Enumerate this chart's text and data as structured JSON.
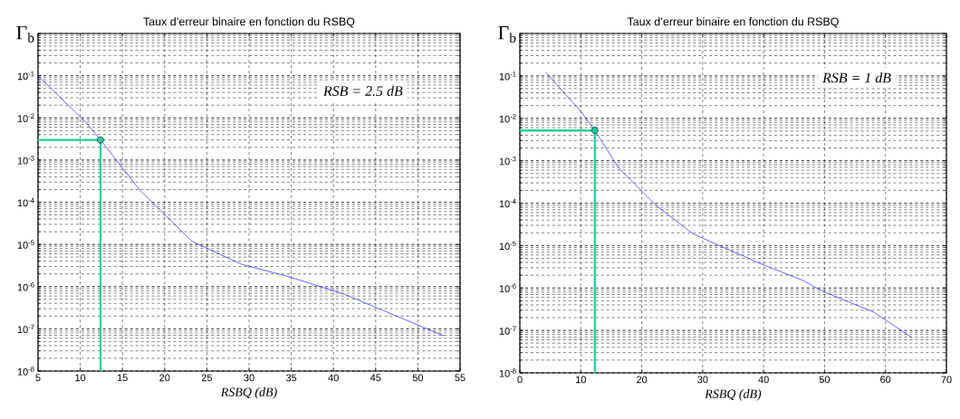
{
  "chart_data": [
    {
      "type": "line",
      "title": "Taux d’erreur binaire en fonction du RSBQ",
      "xlabel": "RSBQ (dB)",
      "ylabel": "Γ$_{b}$",
      "annotations": [
        "RSB = 2.5 dB"
      ],
      "log": "y",
      "grid": true,
      "xlim": [
        5,
        55
      ],
      "xticks": [
        5,
        10,
        15,
        20,
        25,
        30,
        35,
        40,
        45,
        50,
        55
      ],
      "ylim": [
        1e-08,
        1
      ],
      "yticks": [
        {
          "value": 1e-08,
          "label": "10$^{-8}$"
        },
        {
          "value": 1e-07,
          "label": "10$^{-7}$"
        },
        {
          "value": 1e-06,
          "label": "10$^{-6}$"
        },
        {
          "value": 1e-05,
          "label": "10$^{-5}$"
        },
        {
          "value": 0.0001,
          "label": "10$^{-4}$"
        },
        {
          "value": 0.001,
          "label": "10$^{-3}$"
        },
        {
          "value": 0.01,
          "label": "10$^{-2}$"
        },
        {
          "value": 0.1,
          "label": "10$^{-1}$"
        },
        {
          "value": 1,
          "label": null
        }
      ],
      "series": [
        {
          "color": "#0000ff",
          "x": [
            5,
            10.7,
            12.4,
            17.1,
            23.2,
            29.1,
            34.8,
            41.3,
            53.1
          ],
          "values": [
            0.1,
            0.0077,
            0.003,
            0.00019,
            1.2e-05,
            3.4e-06,
            1.7e-06,
            6.6e-07,
            6.8e-08
          ]
        },
        {
          "type": "line",
          "color": "#1ccf9c",
          "x": [
            5,
            12.4,
            12.4
          ],
          "values": [
            0.003,
            0.003,
            1e-08
          ]
        },
        {
          "type": "scatter",
          "color": "#1ccf9c",
          "marker": "circle",
          "x": [
            12.4
          ],
          "values": [
            0.003
          ]
        }
      ]
    },
    {
      "type": "line",
      "title": "Taux d’erreur binaire en fonction du RSBQ",
      "xlabel": "RSBQ (dB)",
      "ylabel": "Γ$_{b}$",
      "annotations": [
        "RSB = 1 dB"
      ],
      "log": "y",
      "grid": true,
      "xlim": [
        0,
        70
      ],
      "xticks": [
        0,
        10,
        20,
        30,
        40,
        50,
        60,
        70
      ],
      "ylim": [
        1e-08,
        1
      ],
      "yticks": [
        {
          "value": 1e-08,
          "label": "10$^{-8}$"
        },
        {
          "value": 1e-07,
          "label": "10$^{-7}$"
        },
        {
          "value": 1e-06,
          "label": "10$^{-6}$"
        },
        {
          "value": 1e-05,
          "label": "10$^{-5}$"
        },
        {
          "value": 0.0001,
          "label": "10$^{-4}$"
        },
        {
          "value": 0.001,
          "label": "10$^{-3}$"
        },
        {
          "value": 0.01,
          "label": "10$^{-2}$"
        },
        {
          "value": 0.1,
          "label": "10$^{-1}$"
        },
        {
          "value": 1,
          "label": null
        }
      ],
      "series": [
        {
          "color": "#0000ff",
          "x": [
            4.3,
            10.1,
            12.3,
            16.2,
            20.2,
            22.4,
            28.4,
            33.1,
            40,
            46.5,
            49.9,
            58.1,
            64.3
          ],
          "values": [
            0.12,
            0.014,
            0.0052,
            0.00068,
            0.00018,
            8.7e-05,
            1.9e-05,
            9.5e-06,
            3.5e-06,
            1.5e-06,
            8.1e-07,
            2.7e-07,
            6.8e-08
          ]
        },
        {
          "type": "line",
          "color": "#1ccf9c",
          "x": [
            0,
            12.3,
            12.3
          ],
          "values": [
            0.0052,
            0.0052,
            1e-08
          ]
        },
        {
          "type": "scatter",
          "color": "#1ccf9c",
          "marker": "circle",
          "x": [
            12.3
          ],
          "values": [
            0.0052
          ]
        }
      ]
    }
  ]
}
